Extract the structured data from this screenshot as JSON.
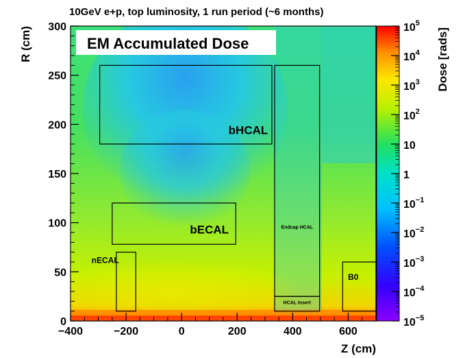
{
  "chart_data": {
    "type": "heatmap",
    "title": "10GeV e+p, top luminosity, 1 run period (~6 months)",
    "xlabel": "Z (cm)",
    "ylabel": "R (cm)",
    "xlim": [
      -400,
      700
    ],
    "ylim": [
      0,
      300
    ],
    "x_ticks": [
      -400,
      -200,
      0,
      200,
      400,
      600
    ],
    "y_ticks": [
      0,
      50,
      100,
      150,
      200,
      250,
      300
    ],
    "color_scale": {
      "label": "Dose [rads]",
      "scale": "log",
      "range": [
        1e-05,
        100000.0
      ],
      "tick_labels": [
        {
          "value": 100000.0,
          "base": "10",
          "exp": "5"
        },
        {
          "value": 10000.0,
          "base": "10",
          "exp": "4"
        },
        {
          "value": 1000.0,
          "base": "10",
          "exp": "3"
        },
        {
          "value": 100.0,
          "base": "10",
          "exp": "2"
        },
        {
          "value": 10,
          "base": "10",
          "exp": ""
        },
        {
          "value": 1,
          "base": "1",
          "exp": ""
        },
        {
          "value": 0.1,
          "base": "10",
          "exp": "−1"
        },
        {
          "value": 0.01,
          "base": "10",
          "exp": "−2"
        },
        {
          "value": 0.001,
          "base": "10",
          "exp": "−3"
        },
        {
          "value": 0.0001,
          "base": "10",
          "exp": "−4"
        },
        {
          "value": 1e-05,
          "base": "10",
          "exp": "−5"
        }
      ]
    },
    "annotation_box": "EM Accumulated Dose",
    "regions": [
      {
        "name": "bHCAL",
        "z": [
          -295,
          325
        ],
        "r": [
          180,
          260
        ],
        "label": "bHCAL",
        "label_at": [
          240,
          190
        ],
        "size": "big"
      },
      {
        "name": "bECAL",
        "z": [
          -250,
          195
        ],
        "r": [
          78,
          120
        ],
        "label": "bECAL",
        "label_at": [
          100,
          89
        ],
        "size": "big"
      },
      {
        "name": "nECAL",
        "z": [
          -235,
          -165
        ],
        "r": [
          10,
          70
        ],
        "label": "nECAL",
        "label_at": [
          -275,
          59
        ],
        "size": "med"
      },
      {
        "name": "Endcap HCAL",
        "z": [
          335,
          497
        ],
        "r": [
          25,
          260
        ],
        "label": "Endcap HCAL",
        "label_at": [
          416,
          94
        ],
        "size": "small"
      },
      {
        "name": "HCAL Insert",
        "z": [
          335,
          497
        ],
        "r": [
          10,
          25
        ],
        "label": "HCAL Insert",
        "label_at": [
          416,
          17
        ],
        "size": "small"
      },
      {
        "name": "B0",
        "z": [
          580,
          700
        ],
        "r": [
          10,
          60
        ],
        "label": "B0",
        "label_at": [
          618,
          42
        ],
        "size": "med"
      }
    ]
  }
}
